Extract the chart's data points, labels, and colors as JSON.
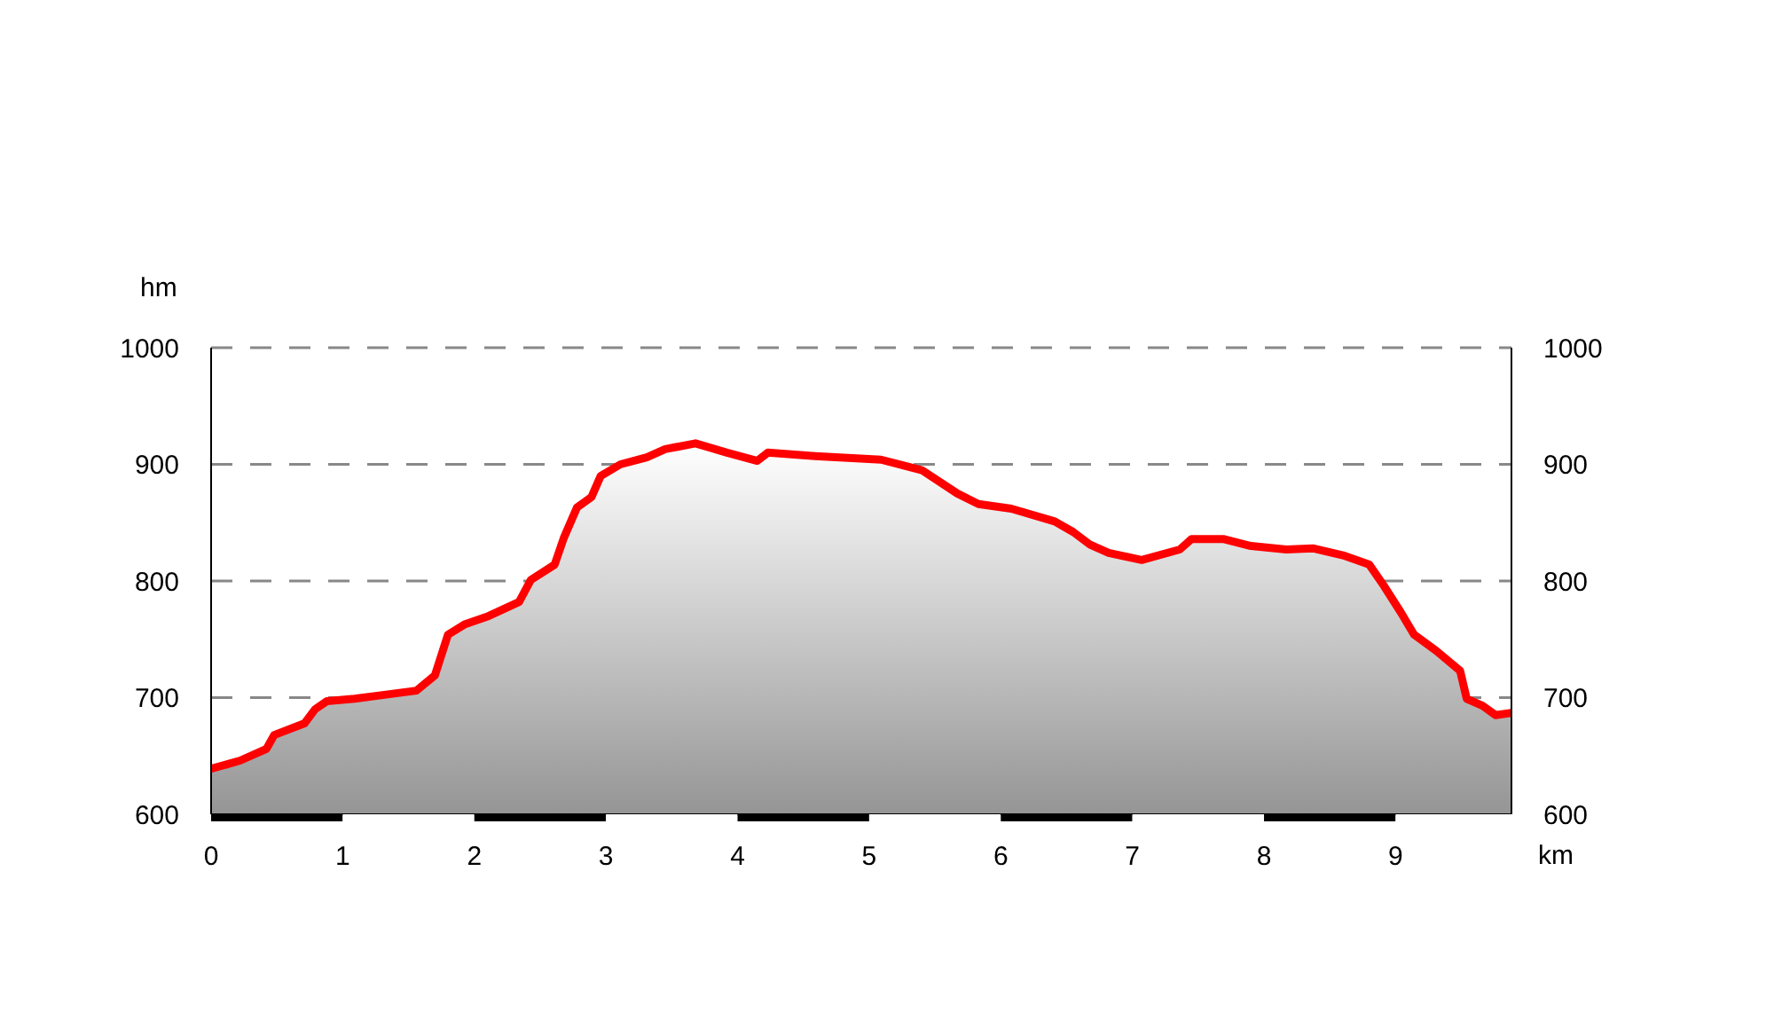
{
  "chart_data": {
    "type": "area",
    "xlabel": "km",
    "ylabel": "hm",
    "x": [
      0,
      0.22,
      0.42,
      0.48,
      0.71,
      0.79,
      0.88,
      1.09,
      1.29,
      1.56,
      1.7,
      1.8,
      1.93,
      2.11,
      2.34,
      2.43,
      2.61,
      2.68,
      2.78,
      2.89,
      2.96,
      3.11,
      3.31,
      3.45,
      3.68,
      3.92,
      4.15,
      4.23,
      4.59,
      5.09,
      5.4,
      5.67,
      5.83,
      6.08,
      6.41,
      6.55,
      6.68,
      6.82,
      7.07,
      7.36,
      7.45,
      7.69,
      7.9,
      8.17,
      8.37,
      8.6,
      8.8,
      8.91,
      9.04,
      9.14,
      9.31,
      9.49,
      9.54,
      9.66,
      9.76,
      9.88
    ],
    "series": [
      {
        "color": "#ff0000",
        "values": [
          639,
          646,
          656,
          668,
          678,
          690,
          697,
          699,
          702,
          706,
          719,
          754,
          763,
          770,
          782,
          801,
          814,
          837,
          863,
          872,
          890,
          900,
          906,
          913,
          918,
          910,
          903,
          910,
          907,
          904,
          895,
          875,
          866,
          862,
          851,
          842,
          831,
          824,
          818,
          827,
          836,
          836,
          830,
          827,
          828,
          822,
          814,
          796,
          773,
          754,
          740,
          723,
          699,
          693,
          685,
          687
        ]
      }
    ],
    "xlim": [
      0,
      9.88
    ],
    "xticks": [
      0,
      1,
      2,
      3,
      4,
      5,
      6,
      7,
      8,
      9
    ],
    "ylim": [
      600,
      1000
    ],
    "yticks": [
      600,
      700,
      800,
      900,
      1000
    ],
    "y2lim": [
      600,
      1000
    ],
    "y2ticks": [
      600,
      700,
      800,
      900,
      1000
    ],
    "grid": "y"
  }
}
